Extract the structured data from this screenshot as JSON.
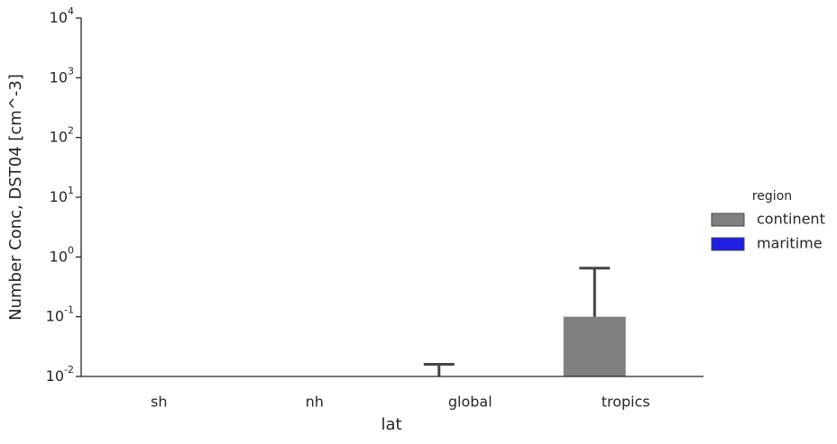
{
  "chart_data": {
    "type": "bar",
    "categories": [
      "sh",
      "nh",
      "global",
      "tropics"
    ],
    "x_label": "lat",
    "y_label": "Number Conc, DST04 [cm^-3]",
    "log_scale": true,
    "ylim": [
      0.01,
      10000
    ],
    "yticks": [
      {
        "value": 0.01,
        "label": "10",
        "exponent": "-2"
      },
      {
        "value": 0.1,
        "label": "10",
        "exponent": "-1"
      },
      {
        "value": 1,
        "label": "10",
        "exponent": "0"
      },
      {
        "value": 10,
        "label": "10",
        "exponent": "1"
      },
      {
        "value": 100,
        "label": "10",
        "exponent": "2"
      },
      {
        "value": 1000,
        "label": "10",
        "exponent": "3"
      },
      {
        "value": 10000,
        "label": "10",
        "exponent": "4"
      }
    ],
    "legend_title": "region",
    "legend_position": "right",
    "series": [
      {
        "name": "continent",
        "color": "#808080",
        "values": [
          null,
          null,
          0.005,
          0.1
        ],
        "error_upper": [
          null,
          null,
          0.016,
          0.65
        ]
      },
      {
        "name": "maritime",
        "color": "#1f1fe6",
        "values": [
          null,
          null,
          null,
          null
        ],
        "error_upper": [
          null,
          null,
          null,
          null
        ]
      }
    ]
  }
}
